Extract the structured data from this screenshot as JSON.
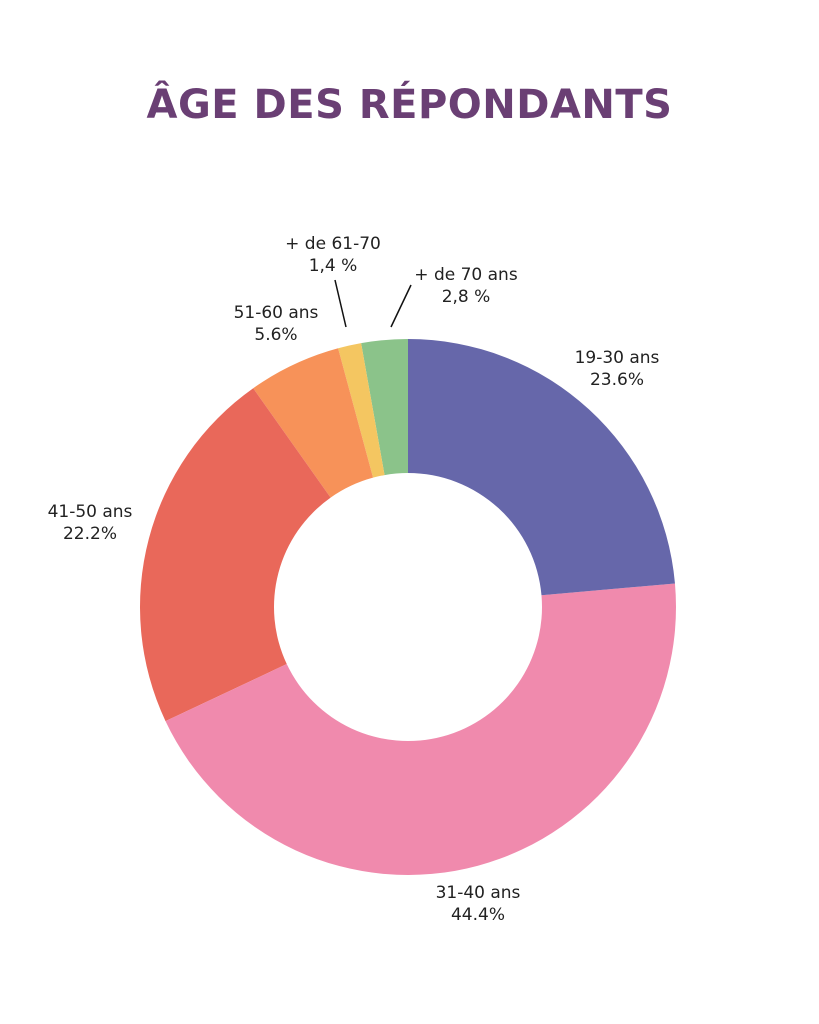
{
  "chart_data": {
    "type": "pie",
    "variant": "donut",
    "title": "ÂGE DES RÉPONDANTS",
    "title_color": "#6a3f74",
    "start": "top",
    "direction": "clockwise",
    "slices": [
      {
        "label": "19-30 ans",
        "value": 23.6,
        "value_label": "23.6%",
        "color": "#6667aa"
      },
      {
        "label": "31-40 ans",
        "value": 44.4,
        "value_label": "44.4%",
        "color": "#f08aad"
      },
      {
        "label": "41-50 ans",
        "value": 22.2,
        "value_label": "22.2%",
        "color": "#e9685a"
      },
      {
        "label": "51-60 ans",
        "value": 5.6,
        "value_label": "5.6%",
        "color": "#f79259"
      },
      {
        "label": "+ de 61-70",
        "value": 1.4,
        "value_label": "1,4 %",
        "color": "#f4c661"
      },
      {
        "label": "+ de 70 ans",
        "value": 2.8,
        "value_label": "2,8 %",
        "color": "#8bc38a"
      }
    ]
  }
}
